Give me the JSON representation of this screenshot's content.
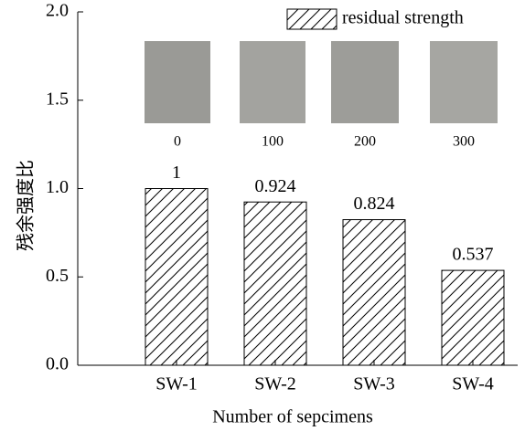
{
  "chart_data": {
    "type": "bar",
    "y_label": "残余强度比",
    "x_label": "Number of sepcimens",
    "categories": [
      "SW-1",
      "SW-2",
      "SW-3",
      "SW-4"
    ],
    "series": [
      {
        "name": "residual strength",
        "color": "#000000",
        "values": [
          1,
          0.924,
          0.824,
          0.537
        ]
      }
    ],
    "ylim": [
      0,
      2
    ],
    "yticks": [
      {
        "value": 0,
        "label": "0.0"
      },
      {
        "value": 0.5,
        "label": "0.5"
      },
      {
        "value": 1,
        "label": "1.0"
      },
      {
        "value": 1.5,
        "label": "1.5"
      },
      {
        "value": 2,
        "label": "2.0"
      }
    ],
    "inset_labels": [
      "0",
      "100",
      "200",
      "300"
    ],
    "legend": "upper right"
  }
}
